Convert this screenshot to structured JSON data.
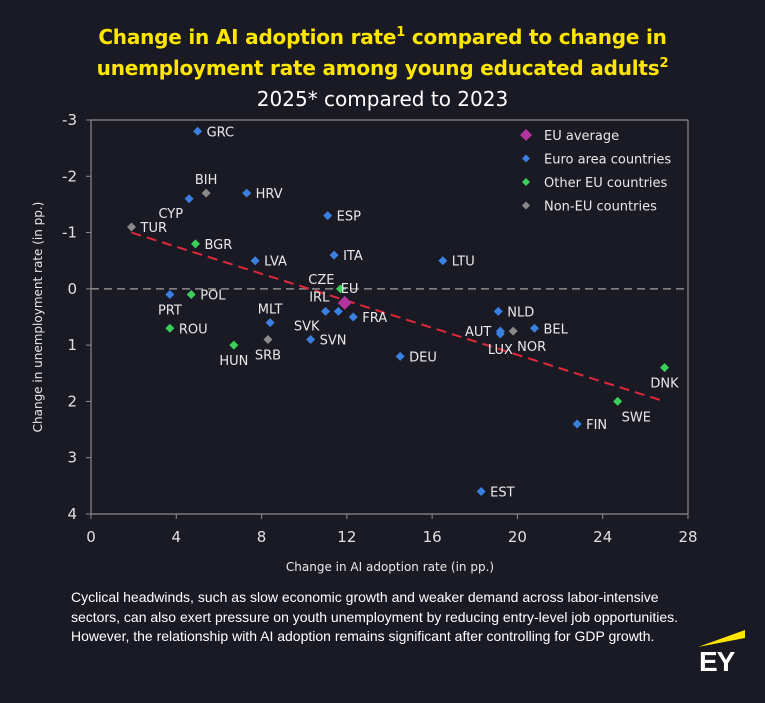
{
  "header": {
    "title_line1": "Change in AI adoption rate",
    "title_line1_sup": "1",
    "title_line1_rest": " compared to change in",
    "title_line2": "unemployment rate among young educated adults",
    "title_line2_sup": "2",
    "subtitle": "2025* compared to 2023"
  },
  "footnote": "Cyclical headwinds, such as slow economic growth and weaker demand across labor-intensive sectors, can also exert pressure on youth unemployment by reducing entry-level job opportunities. However, the relationship with AI adoption remains significant after controlling for GDP growth.",
  "logo": {
    "text": "EY",
    "accent": "#ffe600"
  },
  "chart_data": {
    "type": "scatter",
    "title": "Change in AI adoption rate compared to change in unemployment rate among young educated adults",
    "subtitle": "2025* compared to 2023",
    "xlabel": "Change in AI adoption rate (in pp.)",
    "ylabel": "Change in unemployment rate (in pp.)",
    "xlim": [
      0,
      28
    ],
    "ylim": [
      -3,
      4
    ],
    "y_inverted": true,
    "x_ticks": [
      0,
      4,
      8,
      12,
      16,
      20,
      24,
      28
    ],
    "y_ticks": [
      -3,
      -2,
      -1,
      0,
      1,
      2,
      3,
      4
    ],
    "grid": false,
    "zero_line": true,
    "legend_position": "top-right",
    "categories": {
      "eu": {
        "label": "EU average",
        "color": "#b5339e"
      },
      "euro": {
        "label": "Euro area countries",
        "color": "#3a80e0"
      },
      "other_eu": {
        "label": "Other EU countries",
        "color": "#3ccf5c"
      },
      "non_eu": {
        "label": "Non-EU countries",
        "color": "#8a8a8a"
      }
    },
    "legend_order": [
      "eu",
      "euro",
      "other_eu",
      "non_eu"
    ],
    "points": [
      {
        "label": "GRC",
        "x": 5.0,
        "y": -2.8,
        "cat": "euro",
        "lpos": "right"
      },
      {
        "label": "BIH",
        "x": 5.4,
        "y": -1.7,
        "cat": "non_eu",
        "lpos": "above"
      },
      {
        "label": "CYP",
        "x": 4.6,
        "y": -1.6,
        "cat": "euro",
        "lpos": "below-left"
      },
      {
        "label": "HRV",
        "x": 7.3,
        "y": -1.7,
        "cat": "euro",
        "lpos": "right"
      },
      {
        "label": "TUR",
        "x": 1.9,
        "y": -1.1,
        "cat": "non_eu",
        "lpos": "right"
      },
      {
        "label": "ESP",
        "x": 11.1,
        "y": -1.3,
        "cat": "euro",
        "lpos": "right"
      },
      {
        "label": "BGR",
        "x": 4.9,
        "y": -0.8,
        "cat": "other_eu",
        "lpos": "right"
      },
      {
        "label": "ITA",
        "x": 11.4,
        "y": -0.6,
        "cat": "euro",
        "lpos": "right"
      },
      {
        "label": "LVA",
        "x": 7.7,
        "y": -0.5,
        "cat": "euro",
        "lpos": "right"
      },
      {
        "label": "LTU",
        "x": 16.5,
        "y": -0.5,
        "cat": "euro",
        "lpos": "right"
      },
      {
        "label": "PRT",
        "x": 3.7,
        "y": 0.1,
        "cat": "euro",
        "lpos": "below"
      },
      {
        "label": "POL",
        "x": 4.7,
        "y": 0.1,
        "cat": "other_eu",
        "lpos": "right"
      },
      {
        "label": "CZE",
        "x": 11.7,
        "y": 0.0,
        "cat": "other_eu",
        "lpos": "above-left"
      },
      {
        "label": "EU",
        "x": 11.9,
        "y": 0.25,
        "cat": "eu",
        "lpos": "eu"
      },
      {
        "label": "IRL",
        "x": 11.6,
        "y": 0.4,
        "cat": "euro",
        "lpos": "irl"
      },
      {
        "label": "SVK",
        "x": 11.0,
        "y": 0.4,
        "cat": "euro",
        "lpos": "below-left"
      },
      {
        "label": "FRA",
        "x": 12.3,
        "y": 0.5,
        "cat": "euro",
        "lpos": "right"
      },
      {
        "label": "MLT",
        "x": 8.4,
        "y": 0.6,
        "cat": "euro",
        "lpos": "above"
      },
      {
        "label": "ROU",
        "x": 3.7,
        "y": 0.7,
        "cat": "other_eu",
        "lpos": "right"
      },
      {
        "label": "NLD",
        "x": 19.1,
        "y": 0.4,
        "cat": "euro",
        "lpos": "right"
      },
      {
        "label": "BEL",
        "x": 20.8,
        "y": 0.7,
        "cat": "euro",
        "lpos": "right"
      },
      {
        "label": "AUT",
        "x": 19.2,
        "y": 0.75,
        "cat": "euro",
        "lpos": "left"
      },
      {
        "label": "LUX",
        "x": 19.2,
        "y": 0.8,
        "cat": "euro",
        "lpos": "below"
      },
      {
        "label": "NOR",
        "x": 19.8,
        "y": 0.75,
        "cat": "non_eu",
        "lpos": "below-right"
      },
      {
        "label": "HUN",
        "x": 6.7,
        "y": 1.0,
        "cat": "other_eu",
        "lpos": "below"
      },
      {
        "label": "SRB",
        "x": 8.3,
        "y": 0.9,
        "cat": "non_eu",
        "lpos": "below"
      },
      {
        "label": "SVN",
        "x": 10.3,
        "y": 0.9,
        "cat": "euro",
        "lpos": "right"
      },
      {
        "label": "DEU",
        "x": 14.5,
        "y": 1.2,
        "cat": "euro",
        "lpos": "right"
      },
      {
        "label": "DNK",
        "x": 26.9,
        "y": 1.4,
        "cat": "other_eu",
        "lpos": "below"
      },
      {
        "label": "SWE",
        "x": 24.7,
        "y": 2.0,
        "cat": "other_eu",
        "lpos": "below-right"
      },
      {
        "label": "FIN",
        "x": 22.8,
        "y": 2.4,
        "cat": "euro",
        "lpos": "right"
      },
      {
        "label": "EST",
        "x": 18.3,
        "y": 3.6,
        "cat": "euro",
        "lpos": "right"
      }
    ],
    "trendline": {
      "x": [
        1.9,
        26.9
      ],
      "y": [
        -1.0,
        2.0
      ],
      "color": "#e0283a",
      "style": "dashed"
    },
    "zero_line_color": "#8c8c8c"
  }
}
